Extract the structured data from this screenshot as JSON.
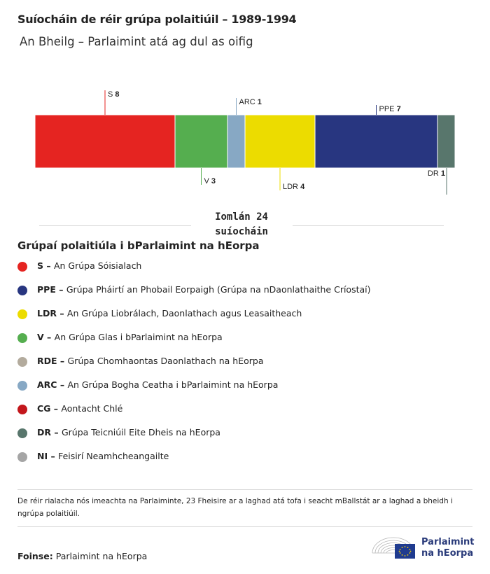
{
  "title": "Suíocháin de réir grúpa polaitiúil – 1989-1994",
  "subtitle": "An Bheilg – Parlaimint atá ag dul as oifig",
  "total_label": "Iomlán 24 suíocháin",
  "chart_data": {
    "type": "bar",
    "orientation": "horizontal-stacked",
    "categories": [
      "S",
      "V",
      "ARC",
      "LDR",
      "PPE",
      "DR"
    ],
    "values": [
      8,
      3,
      1,
      4,
      7,
      1
    ],
    "colors": [
      "#e52421",
      "#55ae4f",
      "#87a8c4",
      "#ecdc00",
      "#283680",
      "#58766c"
    ],
    "label_side": [
      "top",
      "bottom",
      "top",
      "bottom",
      "top",
      "bottom"
    ],
    "total": 24
  },
  "legend": {
    "title": "Grúpaí polaitiúla i bParlaimint na hEorpa",
    "items": [
      {
        "abbr": "S",
        "name": "An Grúpa Sóisialach",
        "color": "#e52421"
      },
      {
        "abbr": "PPE",
        "name": "Grúpa Pháirtí an Phobail Eorpaigh (Grúpa na nDaonlathaithe Críostaí)",
        "color": "#283680"
      },
      {
        "abbr": "LDR",
        "name": "An Grúpa Liobrálach, Daonlathach agus Leasaitheach",
        "color": "#ecdc00"
      },
      {
        "abbr": "V",
        "name": "An Grúpa Glas i bParlaimint na hEorpa",
        "color": "#55ae4f"
      },
      {
        "abbr": "RDE",
        "name": "Grúpa Chomhaontas Daonlathach na hEorpa",
        "color": "#b3ab9d"
      },
      {
        "abbr": "ARC",
        "name": "An Grúpa Bogha Ceatha i bParlaimint na hEorpa",
        "color": "#87a8c4"
      },
      {
        "abbr": "CG",
        "name": "Aontacht Chlé",
        "color": "#c3171c"
      },
      {
        "abbr": "DR",
        "name": "Grúpa Teicniúil Eite Dheis na hEorpa",
        "color": "#58766c"
      },
      {
        "abbr": "NI",
        "name": "Feisirí Neamhcheangailte",
        "color": "#a5a5a5"
      }
    ]
  },
  "footnote": "De réir rialacha nós imeachta na Parlaiminte, 23 Fheisire ar a laghad atá tofa i seacht mBallstát ar a laghad a bheidh i ngrúpa polaitiúil.",
  "source": {
    "label": "Foinse:",
    "value": "Parlaimint na hEorpa"
  },
  "logo": {
    "line1": "Parlaimint",
    "line2": "na hEorpa"
  }
}
